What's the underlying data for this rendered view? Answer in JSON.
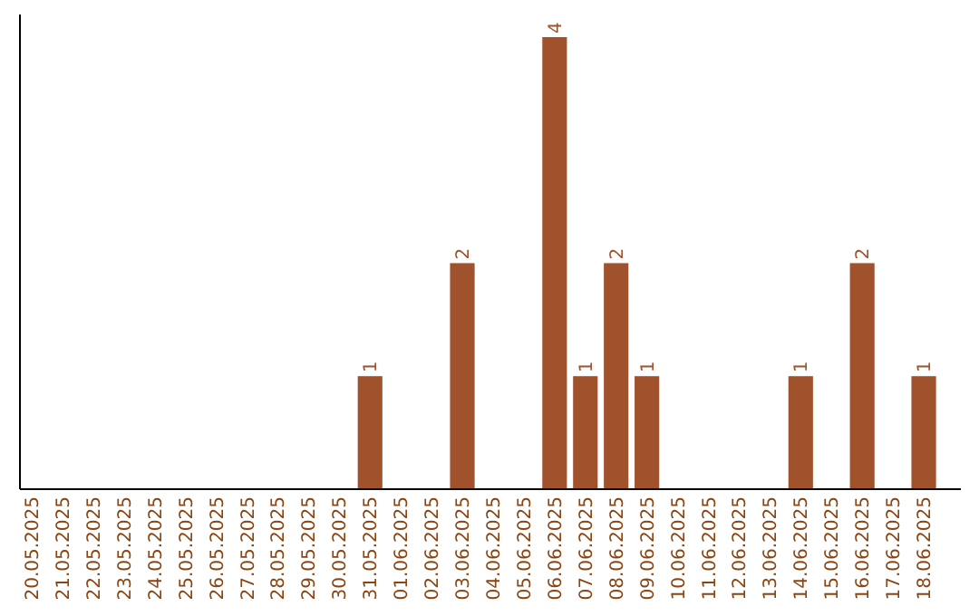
{
  "chart_data": {
    "type": "bar",
    "categories": [
      "20.05.2025",
      "21.05.2025",
      "22.05.2025",
      "23.05.2025",
      "24.05.2025",
      "25.05.2025",
      "26.05.2025",
      "27.05.2025",
      "28.05.2025",
      "29.05.2025",
      "30.05.2025",
      "31.05.2025",
      "01.06.2025",
      "02.06.2025",
      "03.06.2025",
      "04.06.2025",
      "05.06.2025",
      "06.06.2025",
      "07.06.2025",
      "08.06.2025",
      "09.06.2025",
      "10.06.2025",
      "11.06.2025",
      "12.06.2025",
      "13.06.2025",
      "14.06.2025",
      "15.06.2025",
      "16.06.2025",
      "17.06.2025",
      "18.06.2025"
    ],
    "values": [
      0,
      0,
      0,
      0,
      0,
      0,
      0,
      0,
      0,
      0,
      0,
      1,
      0,
      0,
      2,
      0,
      0,
      4,
      1,
      2,
      1,
      0,
      0,
      0,
      0,
      1,
      0,
      2,
      0,
      1
    ],
    "value_labels": [
      null,
      null,
      null,
      null,
      null,
      null,
      null,
      null,
      null,
      null,
      null,
      "1",
      null,
      null,
      "2",
      null,
      null,
      "4",
      "1",
      "2",
      "1",
      null,
      null,
      null,
      null,
      "1",
      null,
      "2",
      null,
      "1"
    ],
    "color": "#a0522d",
    "ylim": [
      0,
      4.2
    ],
    "tick_labels": "x",
    "grid": false
  }
}
